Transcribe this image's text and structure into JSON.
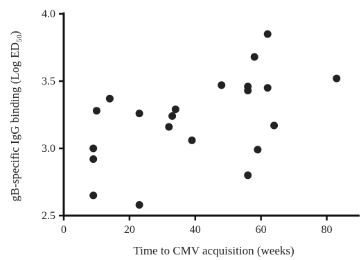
{
  "chart_data": {
    "type": "scatter",
    "title": "",
    "xlabel": "Time to CMV acquisition (weeks)",
    "ylabel": {
      "prefix": "gB-specific IgG binding (Log ED",
      "subscript": "50",
      "suffix": ")"
    },
    "xlim": [
      0,
      90
    ],
    "ylim": [
      2.5,
      4.0
    ],
    "xticks": [
      0,
      20,
      40,
      60,
      80
    ],
    "xtick_labels": [
      "0",
      "20",
      "40",
      "60",
      "80"
    ],
    "yticks": [
      2.5,
      3.0,
      3.5,
      4.0
    ],
    "ytick_labels": [
      "2.5",
      "3.0",
      "3.5",
      "4.0"
    ],
    "grid": false,
    "marker_color": "#222222",
    "axis_color": "#111111",
    "points": [
      {
        "x": 9,
        "y": 3.0
      },
      {
        "x": 9,
        "y": 2.92
      },
      {
        "x": 9,
        "y": 2.65
      },
      {
        "x": 10,
        "y": 3.28
      },
      {
        "x": 14,
        "y": 3.37
      },
      {
        "x": 23,
        "y": 3.26
      },
      {
        "x": 23,
        "y": 2.58
      },
      {
        "x": 32,
        "y": 3.16
      },
      {
        "x": 33,
        "y": 3.24
      },
      {
        "x": 34,
        "y": 3.29
      },
      {
        "x": 39,
        "y": 3.06
      },
      {
        "x": 48,
        "y": 3.47
      },
      {
        "x": 56,
        "y": 3.46
      },
      {
        "x": 56,
        "y": 3.43
      },
      {
        "x": 56,
        "y": 2.8
      },
      {
        "x": 58,
        "y": 3.68
      },
      {
        "x": 59,
        "y": 2.99
      },
      {
        "x": 62,
        "y": 3.85
      },
      {
        "x": 62,
        "y": 3.45
      },
      {
        "x": 64,
        "y": 3.17
      },
      {
        "x": 83,
        "y": 3.52
      }
    ]
  }
}
